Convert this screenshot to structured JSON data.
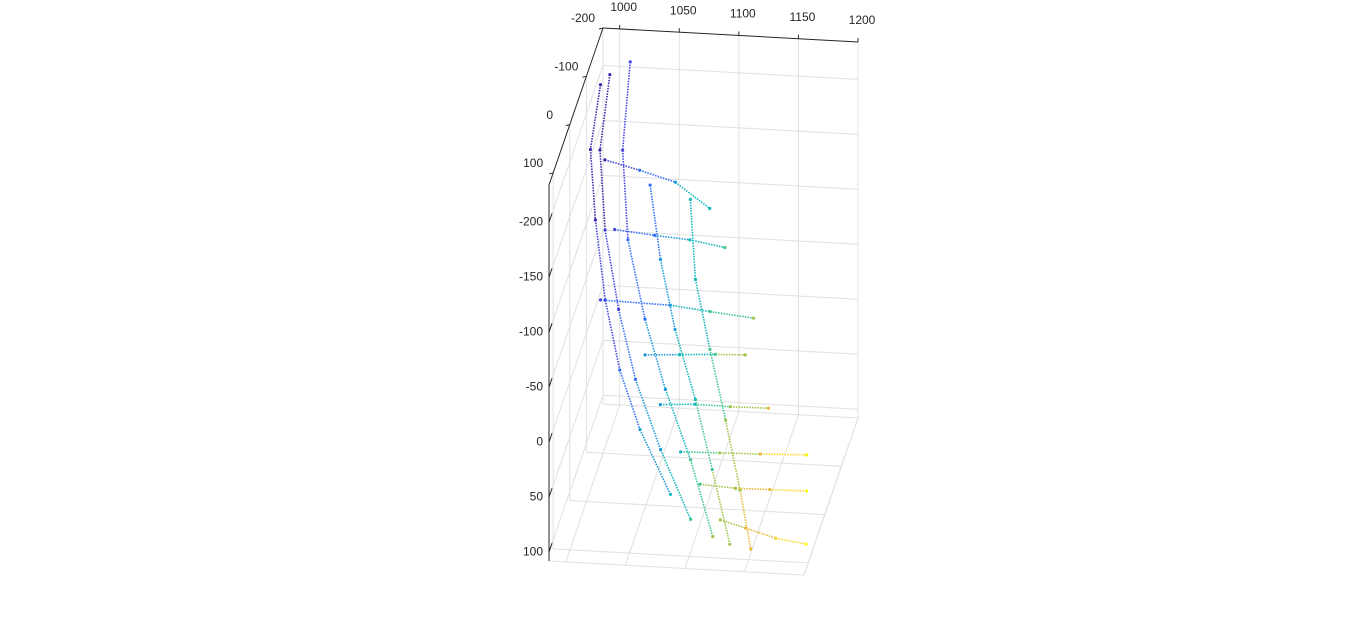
{
  "chart_data": {
    "type": "scatter3d",
    "xlim": [
      986,
      1200
    ],
    "xticks": [
      1000,
      1050,
      1100,
      1150,
      1200
    ],
    "ylim": [
      -200,
      125
    ],
    "yticks": [
      -200,
      -100,
      0,
      100
    ],
    "zlim": [
      -234,
      108
    ],
    "zticks": [
      -200,
      -150,
      -100,
      -50,
      0,
      50,
      100
    ],
    "grid": true,
    "colormap": [
      "#3e26a8",
      "#4743e2",
      "#2f6ff8",
      "#1a9ad8",
      "#11b8bc",
      "#3fc78d",
      "#9fc548",
      "#e8ba37",
      "#f9d72b",
      "#f9fb0e"
    ],
    "series": [
      {
        "x": [
          986,
          983,
          993,
          1008,
          1026,
          1048,
          1079
        ],
        "y": [
          -185,
          -146,
          -104,
          -56,
          -14,
          22,
          61
        ],
        "z": [
          -189,
          -147,
          -102,
          -51,
          -7,
          30,
          70
        ]
      },
      {
        "x": [
          993,
          991,
          1002,
          1020,
          1040,
          1067,
          1098
        ],
        "y": [
          -191,
          -146,
          -98,
          -50,
          -8,
          34,
          76
        ],
        "z": [
          -196,
          -147,
          -96,
          -46,
          -2,
          42,
          85
        ]
      },
      {
        "x": [
          1009,
          1010,
          1022,
          1043,
          1066,
          1093,
          1118
        ],
        "y": [
          -199,
          -146,
          -92,
          -44,
          -2,
          40,
          86
        ],
        "z": [
          -205,
          -148,
          -91,
          -41,
          3,
          47,
          95
        ]
      },
      {
        "x": [
          1036,
          1051,
          1069,
          1092,
          1112,
          1133
        ],
        "y": [
          -125,
          -80,
          -38,
          4,
          46,
          91
        ],
        "z": [
          -127,
          -80,
          -36,
          8,
          52,
          99
        ]
      },
      {
        "x": [
          1071,
          1082,
          1100,
          1119,
          1137,
          1151
        ],
        "y": [
          -116,
          -68,
          -26,
          16,
          58,
          94
        ],
        "z": [
          -120,
          -69,
          -25,
          20,
          64,
          101
        ]
      },
      {
        "x": [
          996,
          1026,
          1057,
          1088
        ],
        "y": [
          -140,
          -134,
          -127,
          -111
        ],
        "z": [
          -141,
          -136,
          -130,
          -115
        ]
      },
      {
        "x": [
          1010,
          1044,
          1074,
          1104
        ],
        "y": [
          -98,
          -95,
          -92,
          -87
        ],
        "z": [
          -97,
          -95,
          -94,
          -91
        ]
      },
      {
        "x": [
          1004,
          1063,
          1097,
          1134
        ],
        "y": [
          -56,
          -53,
          -49,
          -45
        ],
        "z": [
          -51,
          -51,
          -49,
          -47
        ]
      },
      {
        "x": [
          1046,
          1075,
          1105,
          1130
        ],
        "y": [
          -23,
          -23,
          -23,
          -23
        ],
        "z": [
          -18,
          -20,
          -22,
          -23
        ]
      },
      {
        "x": [
          1063,
          1092,
          1122,
          1154
        ],
        "y": [
          7,
          7,
          8,
          9
        ],
        "z": [
          13,
          11,
          11,
          10
        ]
      },
      {
        "x": [
          1084,
          1117,
          1151,
          1190
        ],
        "y": [
          36,
          36,
          36,
          37
        ],
        "z": [
          42,
          41,
          40,
          38
        ]
      },
      {
        "x": [
          1103,
          1133,
          1162,
          1193
        ],
        "y": [
          55,
          57,
          58,
          59
        ],
        "z": [
          62,
          63,
          62,
          61
        ]
      },
      {
        "x": [
          1123,
          1145,
          1171,
          1197
        ],
        "y": [
          76,
          81,
          87,
          91
        ],
        "z": [
          84,
          88,
          93,
          95
        ]
      }
    ]
  }
}
